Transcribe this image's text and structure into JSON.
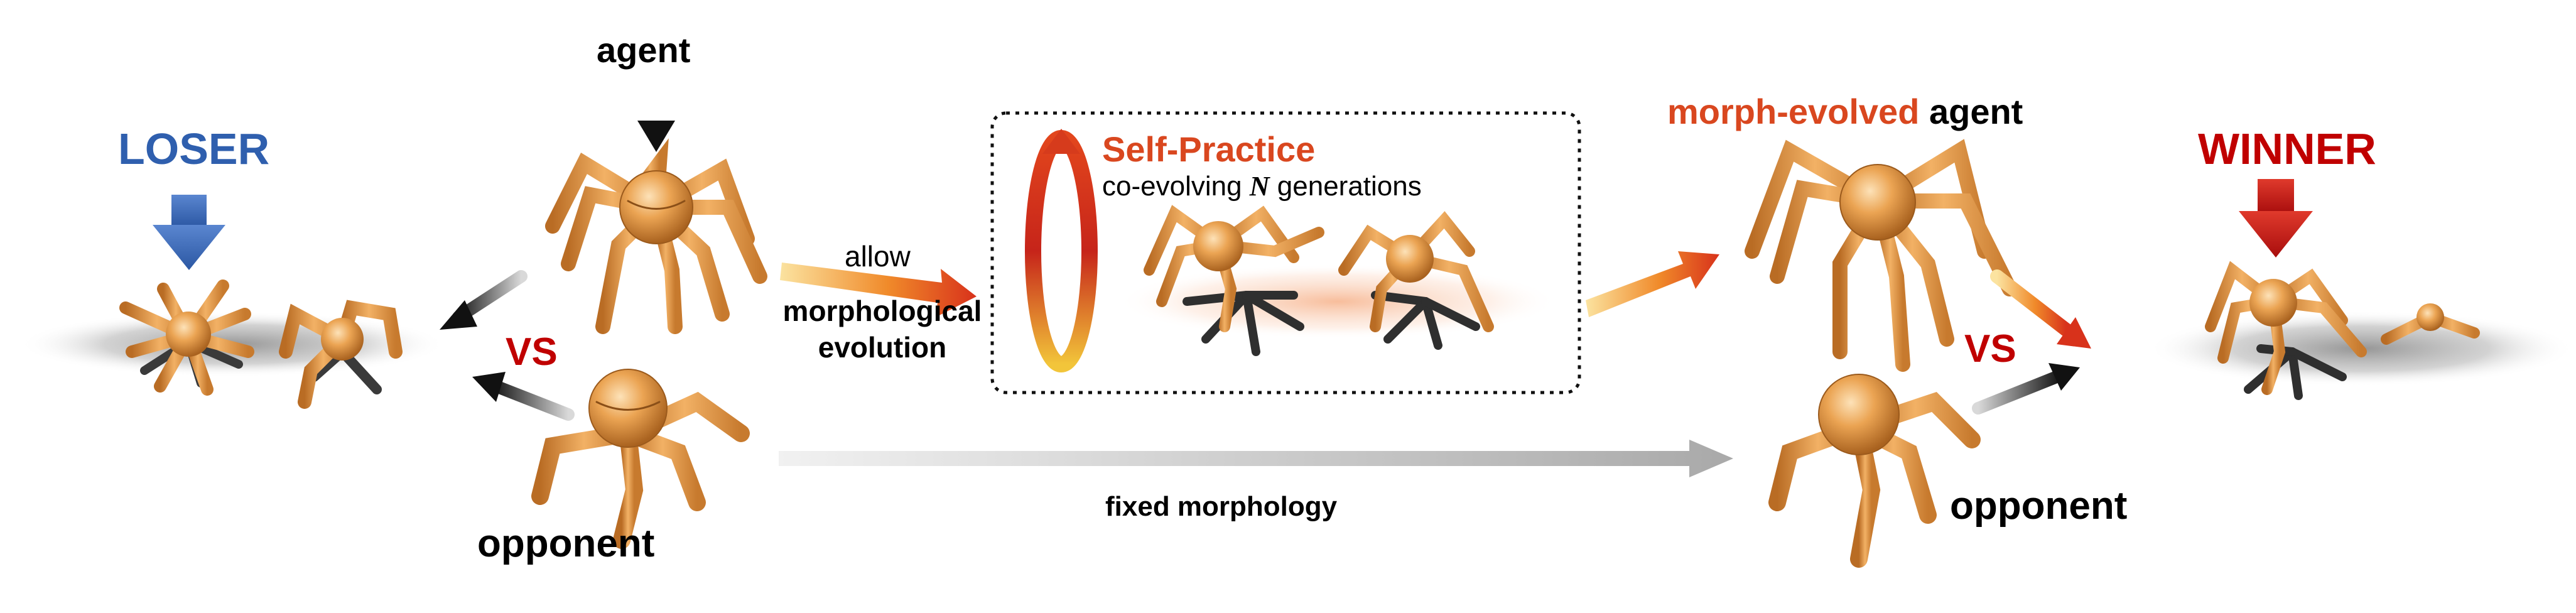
{
  "labels": {
    "agent": "agent",
    "loser": "LOSER",
    "winner": "WINNER",
    "vs_left": "VS",
    "vs_right": "VS",
    "opponent_left": "opponent",
    "opponent_right": "opponent",
    "allow": "allow",
    "morph_line1": "morphological",
    "morph_line2": "evolution",
    "self_practice": "Self-Practice",
    "coevolving_prefix": "co-evolving ",
    "coevolving_n": "N",
    "coevolving_suffix": " generations",
    "fixed_morphology": "fixed morphology",
    "morph_evolved": "morph-evolved",
    "agent_right": " agent"
  },
  "colors": {
    "loser": "#2f5fae",
    "winner": "#c00000",
    "vs": "#c00000",
    "accent": "#d9471f",
    "robot_body": "#e8a24f",
    "robot_dark": "#3a3a3a",
    "text": "#000000"
  },
  "icons": {
    "agent_marker": "down-triangle-icon",
    "loser_marker": "down-arrow-icon",
    "winner_marker": "down-arrow-icon",
    "cycle": "circular-arrow-icon"
  }
}
